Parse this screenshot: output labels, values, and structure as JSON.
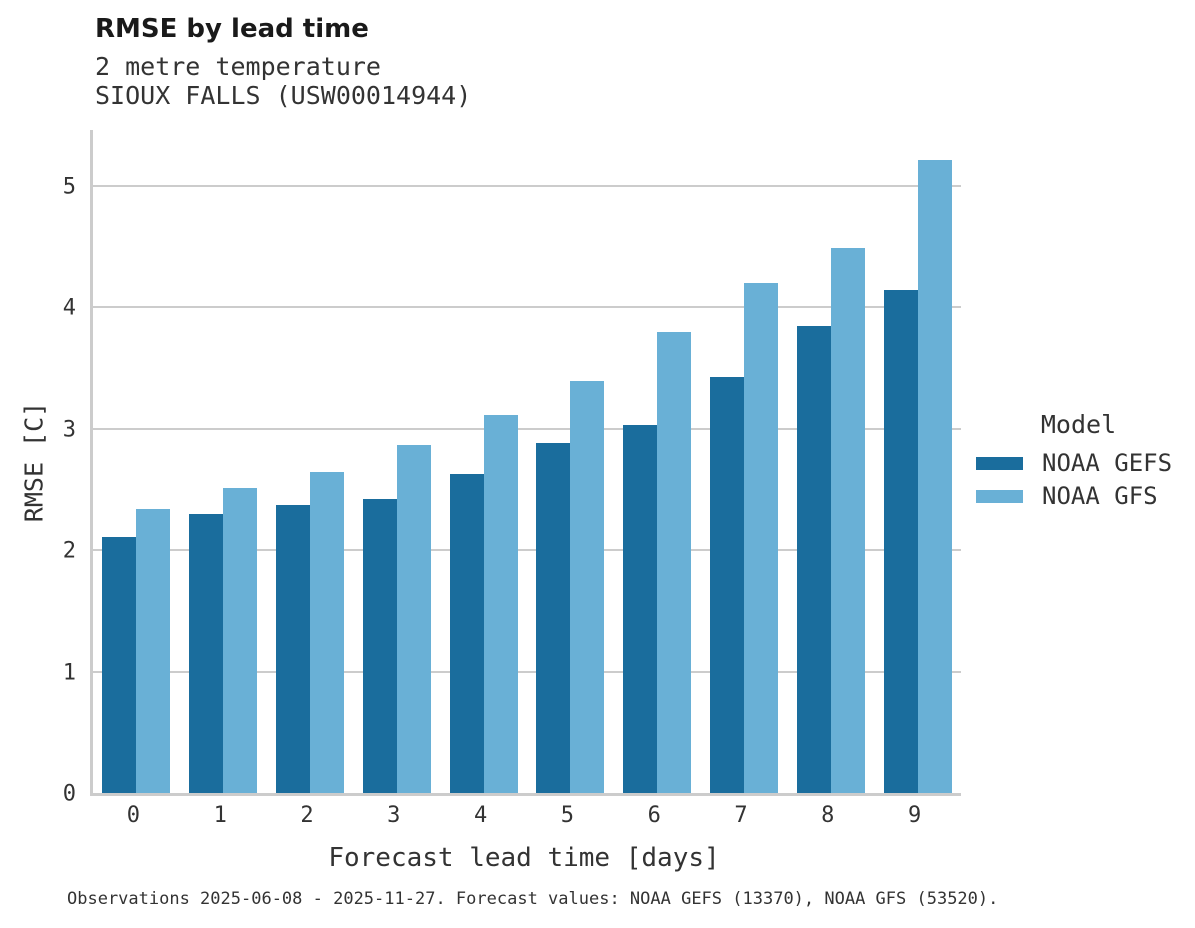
{
  "chart_data": {
    "type": "bar",
    "title": "RMSE by lead time",
    "subtitle": [
      "2 metre temperature",
      "SIOUX FALLS (USW00014944)"
    ],
    "categories": [
      "0",
      "1",
      "2",
      "3",
      "4",
      "5",
      "6",
      "7",
      "8",
      "9"
    ],
    "series": [
      {
        "name": "NOAA GEFS",
        "color": "#1a6d9d",
        "values": [
          2.11,
          2.3,
          2.37,
          2.42,
          2.63,
          2.88,
          3.03,
          3.43,
          3.85,
          4.14
        ]
      },
      {
        "name": "NOAA GFS",
        "color": "#69b0d6",
        "values": [
          2.34,
          2.51,
          2.64,
          2.87,
          3.11,
          3.39,
          3.8,
          4.2,
          4.49,
          5.21
        ]
      }
    ],
    "xlabel": "Forecast lead time [days]",
    "ylabel": "RMSE [C]",
    "ylim": [
      0,
      5.46
    ],
    "yticks": [
      0,
      1,
      2,
      3,
      4,
      5
    ],
    "grid": true,
    "legend": {
      "title": "Model",
      "position": "right"
    },
    "caption": "Observations 2025-06-08 - 2025-11-27. Forecast values: NOAA GEFS (13370), NOAA GFS (53520)."
  },
  "colors": {
    "gridline": "#cccccc",
    "axis_text": "#333333",
    "title_text": "#1a1a1a",
    "background": "#ffffff"
  }
}
